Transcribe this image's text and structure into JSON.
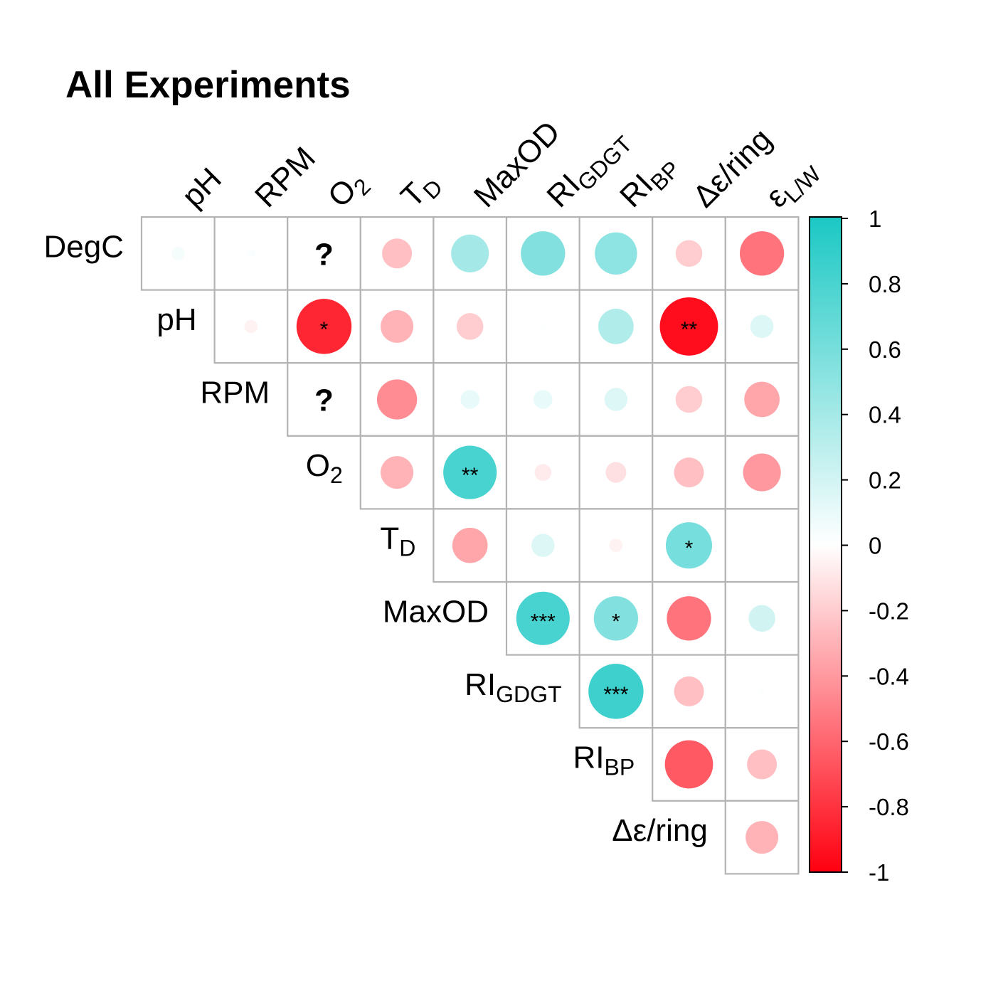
{
  "title": "All Experiments",
  "chart_data": {
    "type": "heatmap",
    "subtype": "correlation-matrix-upper-triangle",
    "title": "All Experiments",
    "columns": [
      {
        "text": "pH"
      },
      {
        "text": "RPM"
      },
      {
        "text": "O",
        "sub": "2"
      },
      {
        "text": "T",
        "sub": "D"
      },
      {
        "text": "MaxOD"
      },
      {
        "text": "RI",
        "sub": "GDGT"
      },
      {
        "text": "RI",
        "sub": "BP"
      },
      {
        "text": "Δε/ring"
      },
      {
        "text": "ε",
        "sub": "L/W"
      }
    ],
    "rows": [
      {
        "text": "DegC"
      },
      {
        "text": "pH"
      },
      {
        "text": "RPM"
      },
      {
        "text": "O",
        "sub": "2"
      },
      {
        "text": "T",
        "sub": "D"
      },
      {
        "text": "MaxOD"
      },
      {
        "text": "RI",
        "sub": "GDGT"
      },
      {
        "text": "RI",
        "sub": "BP"
      },
      {
        "text": "Δε/ring"
      }
    ],
    "values": [
      [
        0.05,
        0.02,
        null,
        -0.25,
        0.4,
        0.55,
        0.5,
        -0.2,
        -0.55
      ],
      [
        -0.05,
        -0.85,
        -0.3,
        -0.2,
        0.01,
        0.35,
        -0.95,
        0.15
      ],
      [
        null,
        -0.45,
        0.1,
        0.1,
        0.15,
        -0.2,
        -0.35
      ],
      [
        -0.3,
        0.8,
        -0.08,
        -0.12,
        -0.25,
        -0.4
      ],
      [
        -0.35,
        0.15,
        -0.05,
        0.6,
        0.01
      ],
      [
        0.8,
        0.55,
        -0.55,
        0.2
      ],
      [
        0.85,
        -0.25,
        0.01
      ],
      [
        -0.65,
        -0.25
      ],
      [
        -0.3
      ]
    ],
    "significance": [
      [
        "",
        "",
        "?",
        "",
        "",
        "",
        "",
        "",
        ""
      ],
      [
        "",
        "*",
        "",
        "",
        "",
        "",
        "**",
        ""
      ],
      [
        "?",
        "",
        "",
        "",
        "",
        "",
        ""
      ],
      [
        "",
        "**",
        "",
        "",
        "",
        ""
      ],
      [
        "",
        "",
        "",
        "*",
        ""
      ],
      [
        "***",
        "*",
        "",
        ""
      ],
      [
        "***",
        "",
        ""
      ],
      [
        "",
        ""
      ],
      [
        ""
      ]
    ],
    "colorbar": {
      "range": [
        -1,
        1
      ],
      "ticks": [
        "1",
        "0.8",
        "0.6",
        "0.4",
        "0.2",
        "0",
        "-0.2",
        "-0.4",
        "-0.6",
        "-0.8",
        "-1"
      ],
      "high_color": "#1bc8c4",
      "mid_color": "#ffffff",
      "low_color": "#ff0010"
    }
  }
}
